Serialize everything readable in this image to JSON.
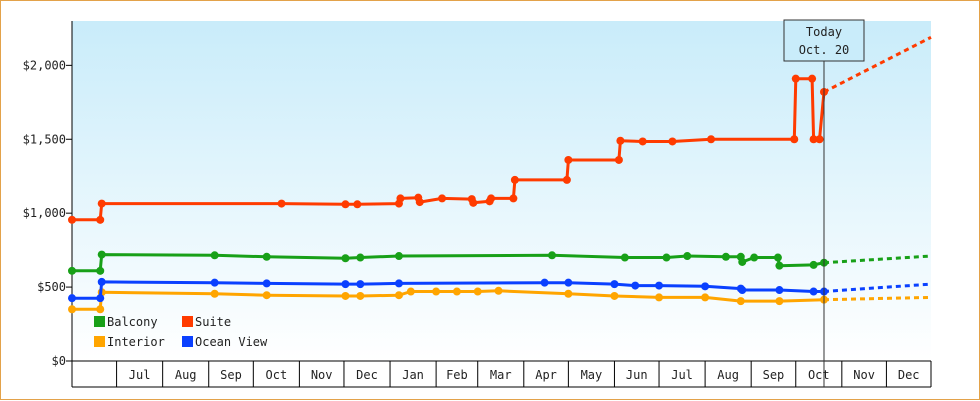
{
  "chart_data": {
    "type": "line",
    "title": "",
    "xlabel": "",
    "ylabel": "",
    "ylim": [
      0,
      2300
    ],
    "y_ticks": [
      {
        "value": 0,
        "label": "$0"
      },
      {
        "value": 500,
        "label": "$500"
      },
      {
        "value": 1000,
        "label": "$1,000"
      },
      {
        "value": 1500,
        "label": "$1,500"
      },
      {
        "value": 2000,
        "label": "$2,000"
      }
    ],
    "x_range": [
      "2021-06-01",
      "2022-12-31"
    ],
    "x_months": [
      {
        "label": "Jul",
        "start": "2021-07-01",
        "end": "2021-08-01"
      },
      {
        "label": "Aug",
        "start": "2021-08-01",
        "end": "2021-09-01"
      },
      {
        "label": "Sep",
        "start": "2021-09-01",
        "end": "2021-10-01"
      },
      {
        "label": "Oct",
        "start": "2021-10-01",
        "end": "2021-11-01"
      },
      {
        "label": "Nov",
        "start": "2021-11-01",
        "end": "2021-12-01"
      },
      {
        "label": "Dec",
        "start": "2021-12-01",
        "end": "2022-01-01"
      },
      {
        "label": "Jan",
        "start": "2022-01-01",
        "end": "2022-02-01"
      },
      {
        "label": "Feb",
        "start": "2022-02-01",
        "end": "2022-03-01"
      },
      {
        "label": "Mar",
        "start": "2022-03-01",
        "end": "2022-04-01"
      },
      {
        "label": "Apr",
        "start": "2022-04-01",
        "end": "2022-05-01"
      },
      {
        "label": "May",
        "start": "2022-05-01",
        "end": "2022-06-01"
      },
      {
        "label": "Jun",
        "start": "2022-06-01",
        "end": "2022-07-01"
      },
      {
        "label": "Jul",
        "start": "2022-07-01",
        "end": "2022-08-01"
      },
      {
        "label": "Aug",
        "start": "2022-08-01",
        "end": "2022-09-01"
      },
      {
        "label": "Sep",
        "start": "2022-09-01",
        "end": "2022-10-01"
      },
      {
        "label": "Oct",
        "start": "2022-10-01",
        "end": "2022-11-01"
      },
      {
        "label": "Nov",
        "start": "2022-11-01",
        "end": "2022-12-01"
      },
      {
        "label": "Dec",
        "start": "2022-12-01",
        "end": "2022-12-31"
      }
    ],
    "today": {
      "line1": "Today",
      "line2": "Oct. 20",
      "date": "2022-10-20"
    },
    "grid": false,
    "legend_position": "bottom-left",
    "series": [
      {
        "name": "Balcony",
        "color": "#18a018",
        "points": [
          {
            "x": "2021-06-01",
            "y": 610
          },
          {
            "x": "2021-06-20",
            "y": 610
          },
          {
            "x": "2021-06-21",
            "y": 720
          },
          {
            "x": "2021-09-05",
            "y": 715
          },
          {
            "x": "2021-10-10",
            "y": 705
          },
          {
            "x": "2021-12-02",
            "y": 695
          },
          {
            "x": "2021-12-12",
            "y": 700
          },
          {
            "x": "2022-01-07",
            "y": 710
          },
          {
            "x": "2022-04-20",
            "y": 715
          },
          {
            "x": "2022-06-08",
            "y": 700
          },
          {
            "x": "2022-07-06",
            "y": 700
          },
          {
            "x": "2022-07-20",
            "y": 710
          },
          {
            "x": "2022-08-15",
            "y": 705
          },
          {
            "x": "2022-08-25",
            "y": 705
          },
          {
            "x": "2022-08-26",
            "y": 670
          },
          {
            "x": "2022-09-03",
            "y": 700
          },
          {
            "x": "2022-09-19",
            "y": 700
          },
          {
            "x": "2022-09-20",
            "y": 645
          },
          {
            "x": "2022-10-13",
            "y": 650
          },
          {
            "x": "2022-10-20",
            "y": 665
          }
        ],
        "forecast": [
          {
            "x": "2022-10-20",
            "y": 665
          },
          {
            "x": "2022-12-31",
            "y": 710
          }
        ]
      },
      {
        "name": "Suite",
        "color": "#ff3b00",
        "points": [
          {
            "x": "2021-06-01",
            "y": 955
          },
          {
            "x": "2021-06-20",
            "y": 955
          },
          {
            "x": "2021-06-21",
            "y": 1065
          },
          {
            "x": "2021-10-20",
            "y": 1065
          },
          {
            "x": "2021-12-02",
            "y": 1060
          },
          {
            "x": "2021-12-10",
            "y": 1060
          },
          {
            "x": "2022-01-07",
            "y": 1065
          },
          {
            "x": "2022-01-08",
            "y": 1100
          },
          {
            "x": "2022-01-20",
            "y": 1105
          },
          {
            "x": "2022-01-21",
            "y": 1075
          },
          {
            "x": "2022-02-05",
            "y": 1100
          },
          {
            "x": "2022-02-25",
            "y": 1095
          },
          {
            "x": "2022-02-26",
            "y": 1070
          },
          {
            "x": "2022-03-09",
            "y": 1080
          },
          {
            "x": "2022-03-10",
            "y": 1100
          },
          {
            "x": "2022-03-25",
            "y": 1100
          },
          {
            "x": "2022-03-26",
            "y": 1225
          },
          {
            "x": "2022-04-30",
            "y": 1225
          },
          {
            "x": "2022-05-01",
            "y": 1360
          },
          {
            "x": "2022-06-04",
            "y": 1360
          },
          {
            "x": "2022-06-05",
            "y": 1490
          },
          {
            "x": "2022-06-20",
            "y": 1485
          },
          {
            "x": "2022-07-10",
            "y": 1485
          },
          {
            "x": "2022-08-05",
            "y": 1500
          },
          {
            "x": "2022-09-30",
            "y": 1500
          },
          {
            "x": "2022-10-01",
            "y": 1910
          },
          {
            "x": "2022-10-12",
            "y": 1910
          },
          {
            "x": "2022-10-13",
            "y": 1500
          },
          {
            "x": "2022-10-17",
            "y": 1500
          },
          {
            "x": "2022-10-20",
            "y": 1820
          }
        ],
        "forecast": [
          {
            "x": "2022-10-20",
            "y": 1820
          },
          {
            "x": "2022-12-31",
            "y": 2190
          }
        ]
      },
      {
        "name": "Interior",
        "color": "#ffa500",
        "points": [
          {
            "x": "2021-06-01",
            "y": 350
          },
          {
            "x": "2021-06-20",
            "y": 350
          },
          {
            "x": "2021-06-21",
            "y": 465
          },
          {
            "x": "2021-09-05",
            "y": 455
          },
          {
            "x": "2021-10-10",
            "y": 445
          },
          {
            "x": "2021-12-02",
            "y": 440
          },
          {
            "x": "2021-12-12",
            "y": 440
          },
          {
            "x": "2022-01-07",
            "y": 445
          },
          {
            "x": "2022-01-15",
            "y": 470
          },
          {
            "x": "2022-02-01",
            "y": 470
          },
          {
            "x": "2022-02-15",
            "y": 470
          },
          {
            "x": "2022-03-01",
            "y": 470
          },
          {
            "x": "2022-03-15",
            "y": 475
          },
          {
            "x": "2022-05-01",
            "y": 455
          },
          {
            "x": "2022-06-01",
            "y": 440
          },
          {
            "x": "2022-07-01",
            "y": 430
          },
          {
            "x": "2022-08-01",
            "y": 430
          },
          {
            "x": "2022-08-25",
            "y": 405
          },
          {
            "x": "2022-09-20",
            "y": 405
          },
          {
            "x": "2022-10-20",
            "y": 415
          }
        ],
        "forecast": [
          {
            "x": "2022-10-20",
            "y": 415
          },
          {
            "x": "2022-12-31",
            "y": 430
          }
        ]
      },
      {
        "name": "Ocean View",
        "color": "#0a40ff",
        "points": [
          {
            "x": "2021-06-01",
            "y": 425
          },
          {
            "x": "2021-06-20",
            "y": 425
          },
          {
            "x": "2021-06-21",
            "y": 535
          },
          {
            "x": "2021-09-05",
            "y": 530
          },
          {
            "x": "2021-10-10",
            "y": 525
          },
          {
            "x": "2021-12-02",
            "y": 520
          },
          {
            "x": "2021-12-12",
            "y": 520
          },
          {
            "x": "2022-01-07",
            "y": 525
          },
          {
            "x": "2022-04-15",
            "y": 530
          },
          {
            "x": "2022-05-01",
            "y": 530
          },
          {
            "x": "2022-06-01",
            "y": 520
          },
          {
            "x": "2022-06-15",
            "y": 510
          },
          {
            "x": "2022-07-01",
            "y": 510
          },
          {
            "x": "2022-08-01",
            "y": 505
          },
          {
            "x": "2022-08-25",
            "y": 490
          },
          {
            "x": "2022-08-26",
            "y": 480
          },
          {
            "x": "2022-09-20",
            "y": 480
          },
          {
            "x": "2022-10-13",
            "y": 470
          },
          {
            "x": "2022-10-20",
            "y": 470
          }
        ],
        "forecast": [
          {
            "x": "2022-10-20",
            "y": 470
          },
          {
            "x": "2022-12-31",
            "y": 520
          }
        ]
      }
    ],
    "legend": [
      {
        "name": "Balcony",
        "color": "#18a018"
      },
      {
        "name": "Suite",
        "color": "#ff3b00"
      },
      {
        "name": "Interior",
        "color": "#ffa500"
      },
      {
        "name": "Ocean View",
        "color": "#0a40ff"
      }
    ]
  }
}
